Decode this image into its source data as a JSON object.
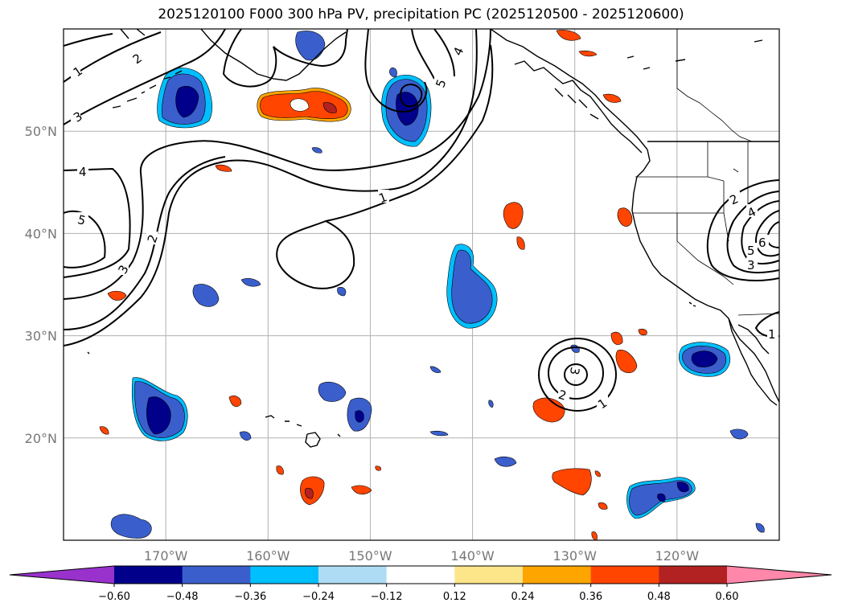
{
  "title": "2025120100 F000 300 hPa PV, precipitation PC (2025120500 - 2025120600)",
  "map": {
    "lon_range": [
      -180,
      -110
    ],
    "lat_range": [
      10,
      60
    ],
    "lat_ticks": [
      {
        "value": 20,
        "label": "20°N"
      },
      {
        "value": 30,
        "label": "30°N"
      },
      {
        "value": 40,
        "label": "40°N"
      },
      {
        "value": 50,
        "label": "50°N"
      }
    ],
    "lon_ticks": [
      {
        "value": -170,
        "label": "170°W"
      },
      {
        "value": -160,
        "label": "160°W"
      },
      {
        "value": -150,
        "label": "150°W"
      },
      {
        "value": -140,
        "label": "140°W"
      },
      {
        "value": -130,
        "label": "130°W"
      },
      {
        "value": -120,
        "label": "120°W"
      }
    ],
    "gridlines": true,
    "contour_labels": [
      "1",
      "2",
      "3",
      "4",
      "5",
      "6"
    ]
  },
  "colorbar": {
    "ticks": [
      "−0.60",
      "−0.48",
      "−0.36",
      "−0.24",
      "−0.12",
      "0.12",
      "0.24",
      "0.36",
      "0.48",
      "0.60"
    ],
    "colors": [
      "#9932cc",
      "#00008b",
      "#3a5fcd",
      "#00bfff",
      "#aedcf5",
      "#ffffff",
      "#fde68a",
      "#ffa500",
      "#ff4500",
      "#b22222",
      "#ff88aa"
    ]
  },
  "colors": {
    "neg_strong": "#00008b",
    "neg_mid": "#3a5fcd",
    "neg_light": "#00bfff",
    "pos_light": "#ffa500",
    "pos_mid": "#ff4500",
    "pos_strong": "#b22222"
  }
}
